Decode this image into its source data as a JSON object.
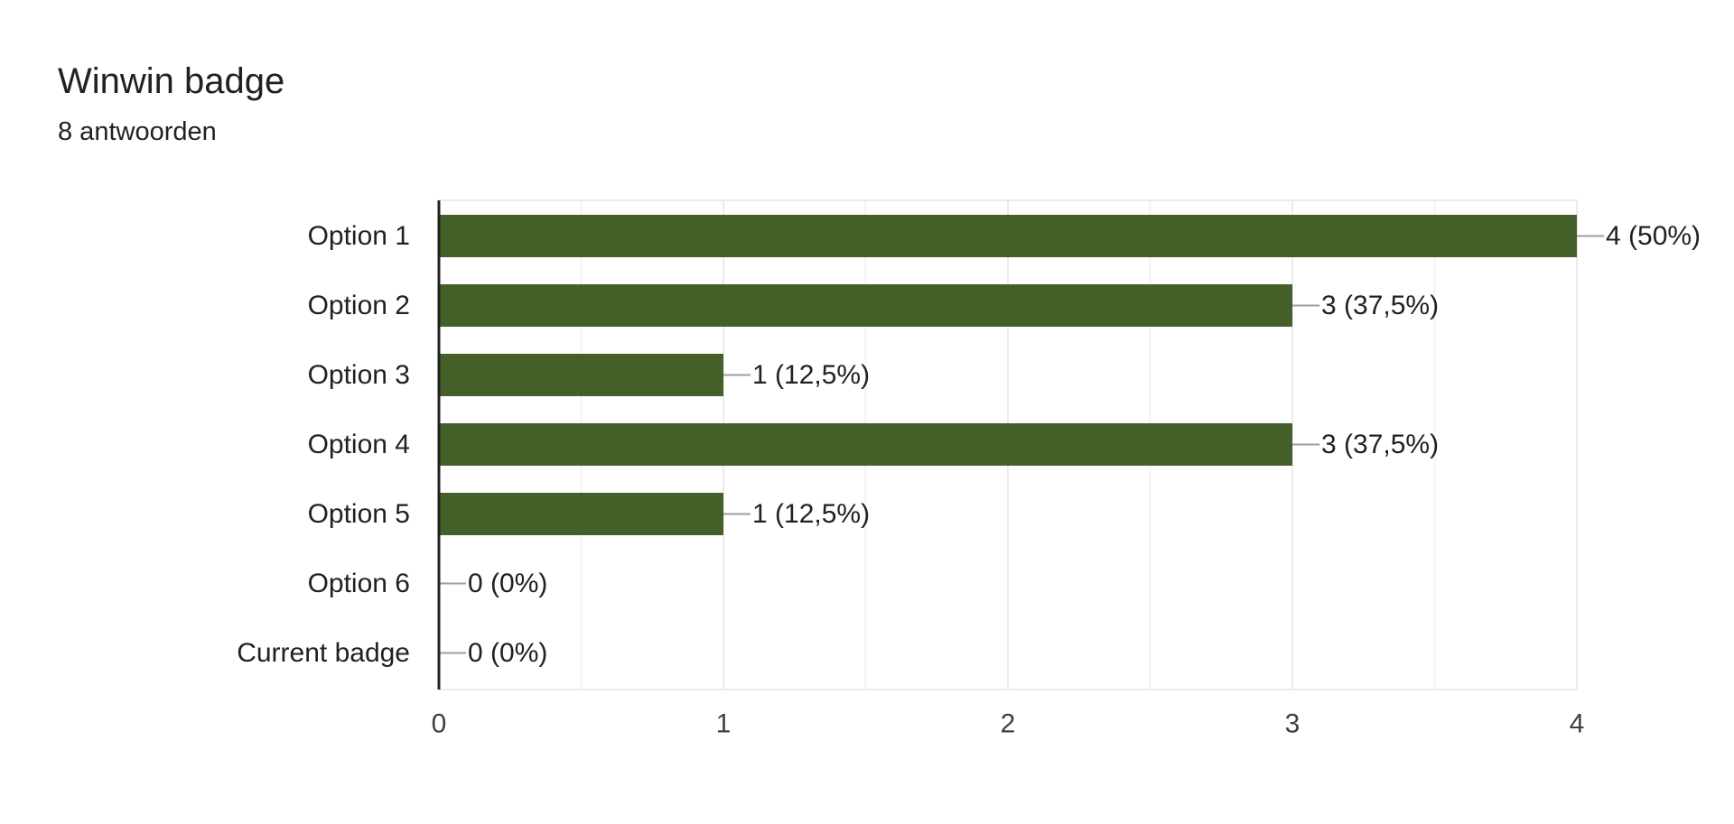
{
  "header": {
    "title": "Winwin badge",
    "responses": "8 antwoorden"
  },
  "colors": {
    "bar": "#455f29",
    "axis": "#202124",
    "grid": "#ebebeb",
    "leader": "#9e9e9e"
  },
  "chart_data": {
    "type": "bar",
    "orientation": "horizontal",
    "title": "Winwin badge",
    "subtitle": "8 antwoorden",
    "xlabel": "",
    "ylabel": "",
    "categories": [
      "Option 1",
      "Option 2",
      "Option 3",
      "Option 4",
      "Option 5",
      "Option 6",
      "Current badge"
    ],
    "values": [
      4,
      3,
      1,
      3,
      1,
      0,
      0
    ],
    "data_labels": [
      "4 (50%)",
      "3 (37,5%)",
      "1 (12,5%)",
      "3 (37,5%)",
      "1 (12,5%)",
      "0 (0%)",
      "0 (0%)"
    ],
    "xlim": [
      0,
      4
    ],
    "xticks": [
      0,
      1,
      2,
      3,
      4
    ],
    "minor_gridlines": true,
    "grid": true,
    "legend": "none"
  }
}
